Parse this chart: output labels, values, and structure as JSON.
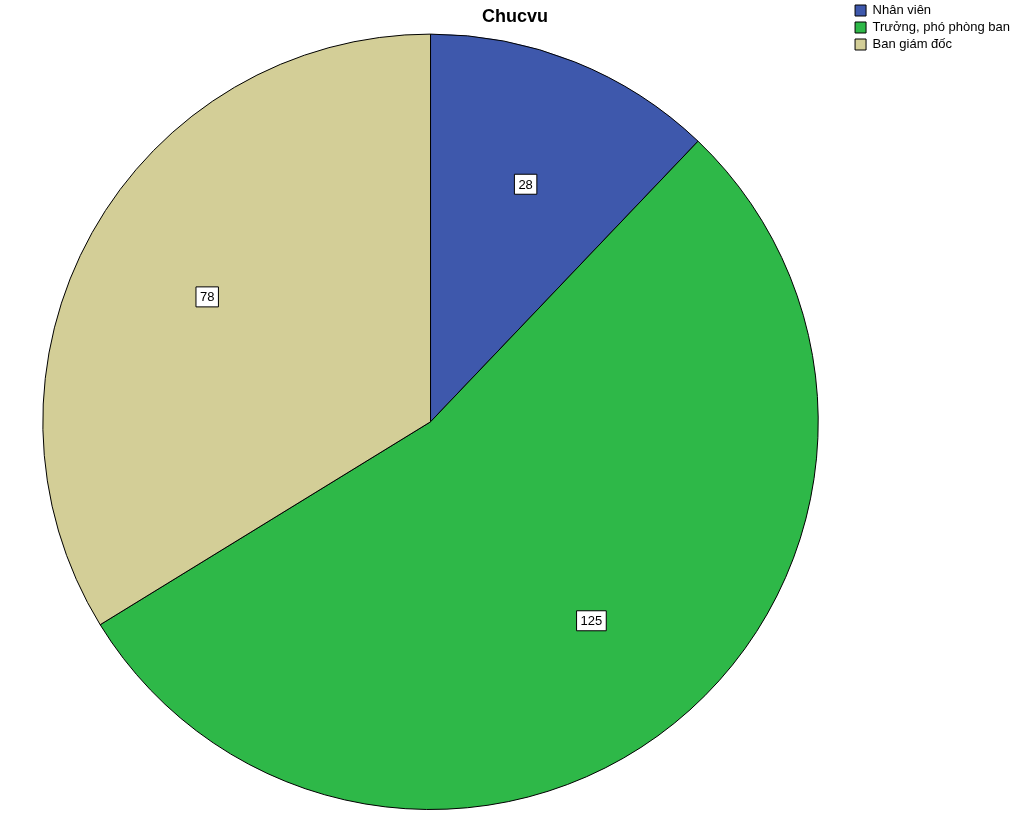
{
  "chart_data": {
    "type": "pie",
    "title": "Chucvu",
    "categories": [
      "Nhân viên",
      "Trưởng, phó phòng ban",
      "Ban giám đốc"
    ],
    "values": [
      28,
      125,
      78
    ],
    "colors": [
      "#3e58ac",
      "#2eb848",
      "#d3ce97"
    ],
    "data_labels": true,
    "legend": "top right"
  }
}
